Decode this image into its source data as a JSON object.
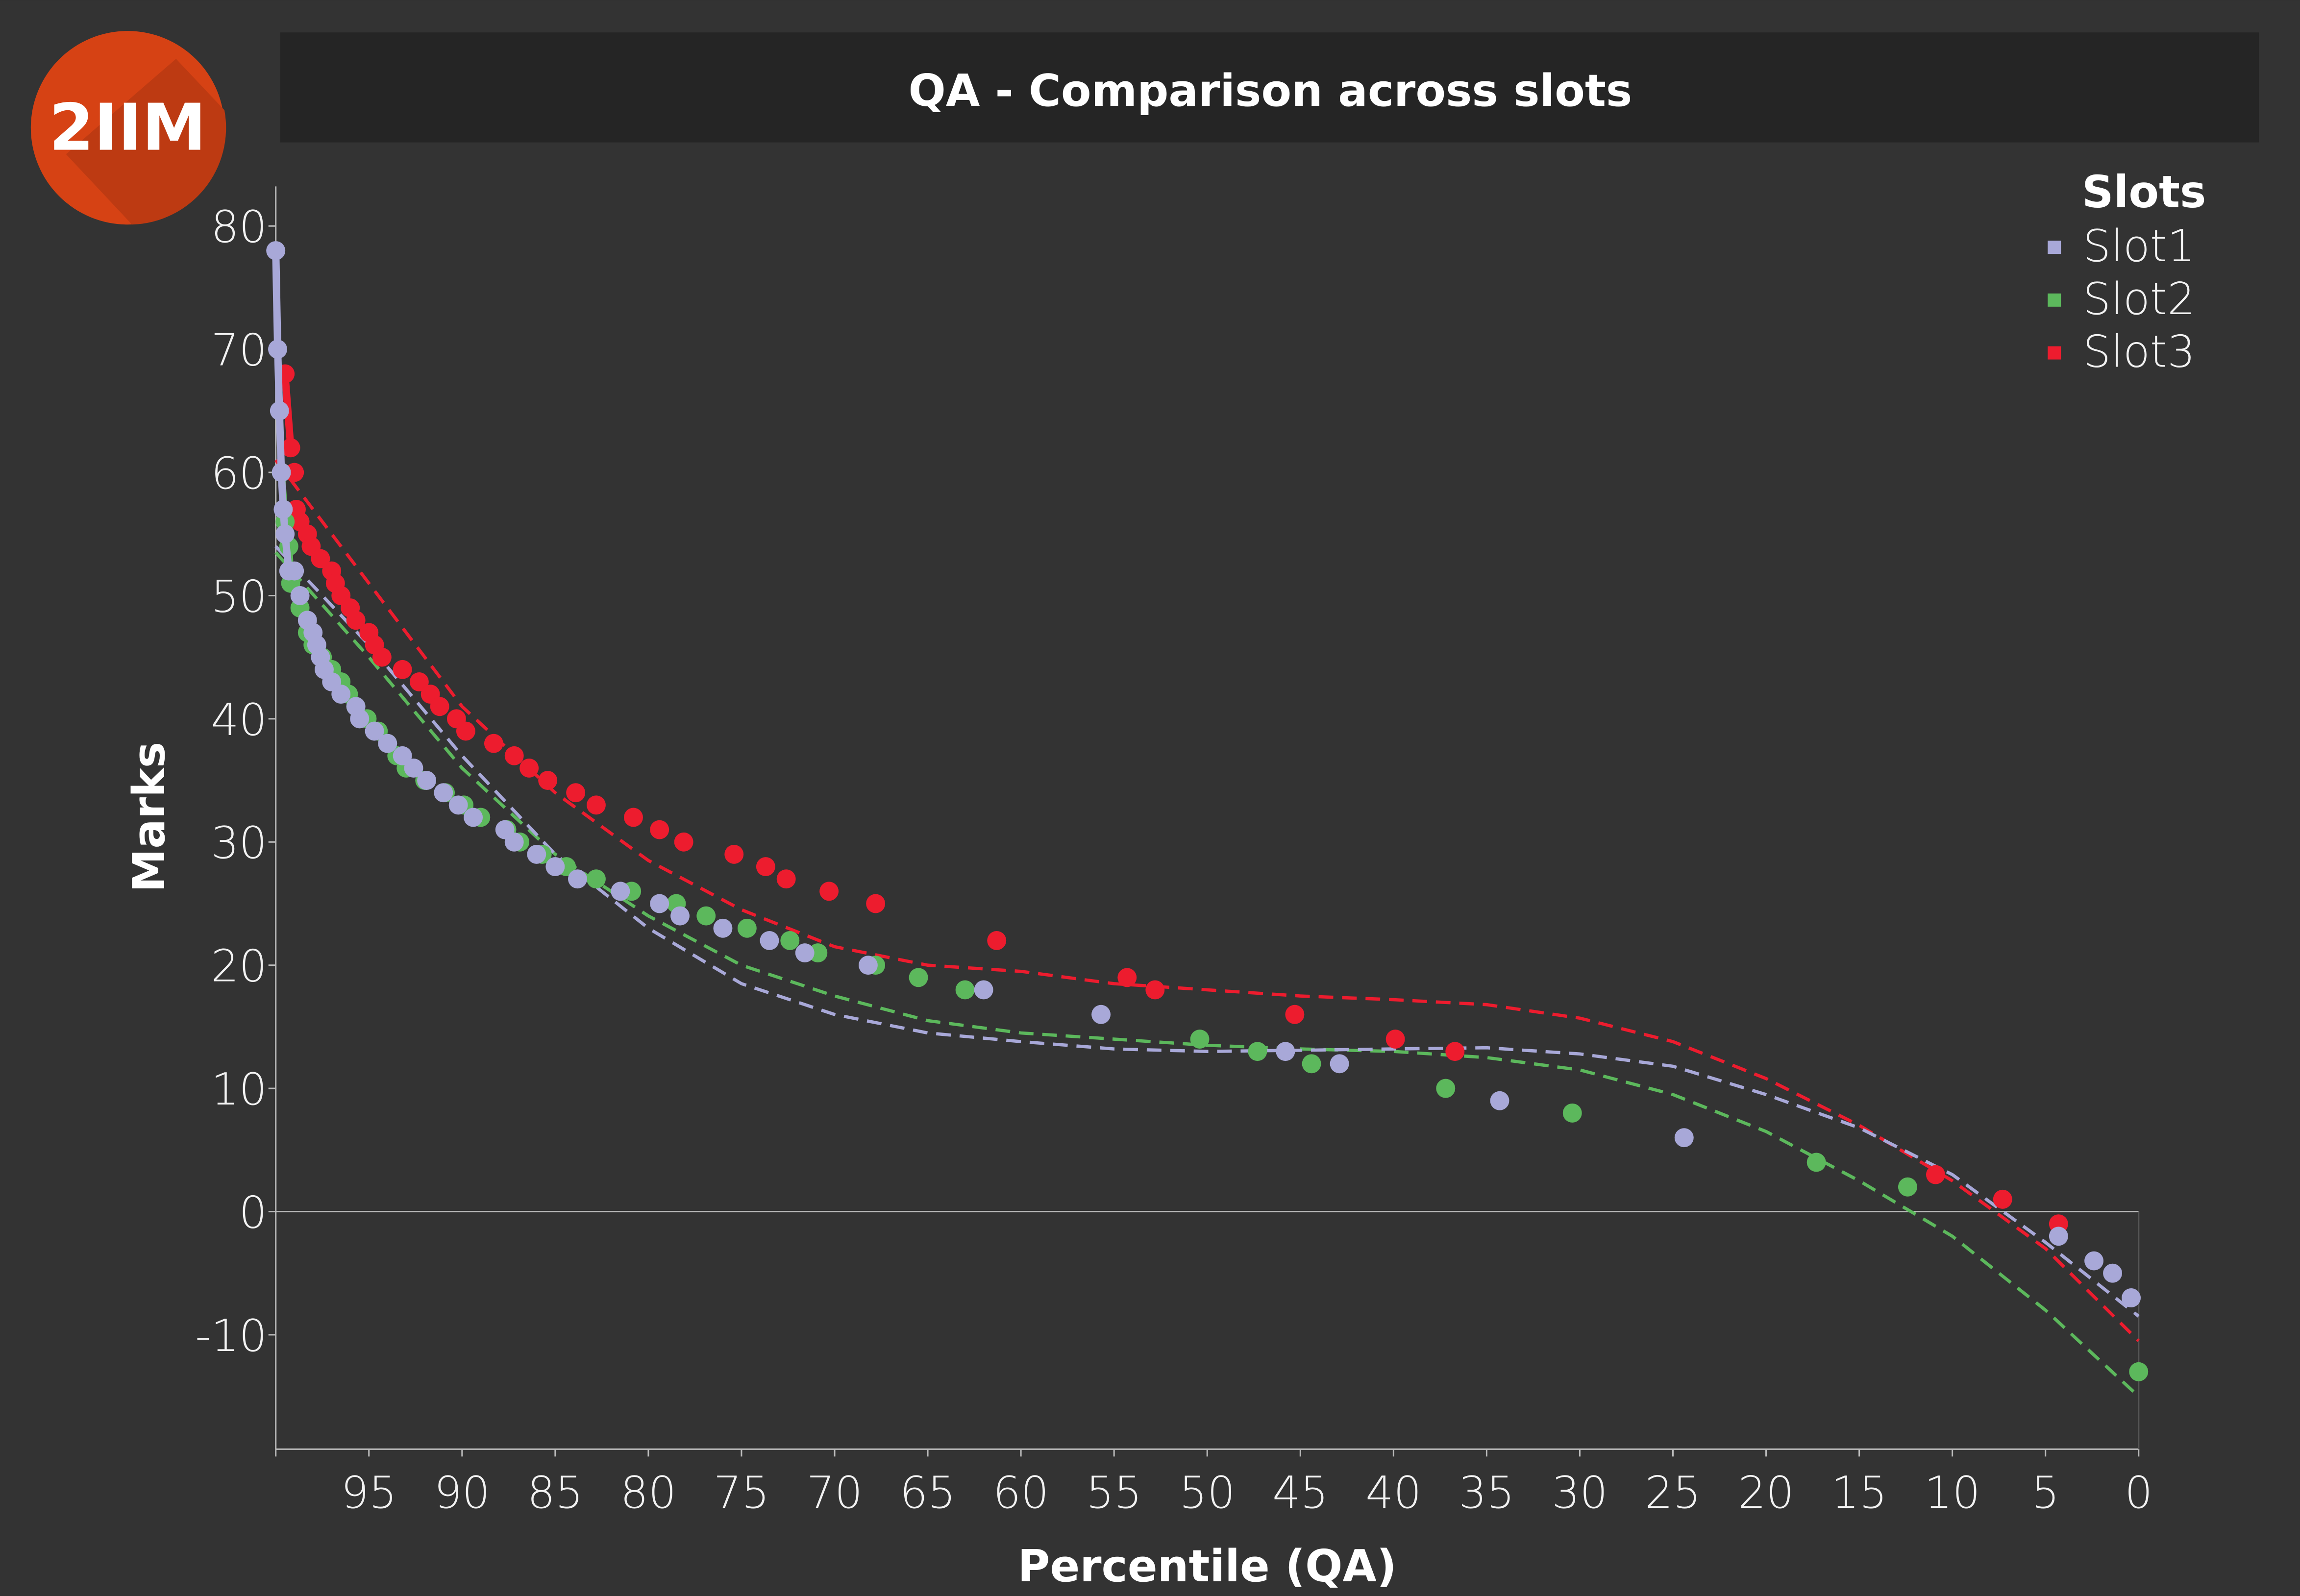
{
  "logo": {
    "text": "2IIM",
    "color": "#d64214"
  },
  "header": {
    "title": "QA - Comparison across slots"
  },
  "legend": {
    "title": "Slots",
    "items": [
      {
        "label": "Slot1",
        "color": "#a8a8d8"
      },
      {
        "label": "Slot2",
        "color": "#5cb85c"
      },
      {
        "label": "Slot3",
        "color": "#ed1c2e"
      }
    ]
  },
  "chart_data": {
    "type": "scatter",
    "title": "QA - Comparison across slots",
    "xlabel": "Percentile (QA)",
    "ylabel": "Marks",
    "xlim": [
      100,
      -0.3
    ],
    "ylim": [
      -19.3,
      83
    ],
    "x_reversed": true,
    "xticks": [
      95,
      90,
      85,
      80,
      75,
      70,
      65,
      60,
      55,
      50,
      45,
      40,
      35,
      30,
      25,
      20,
      15,
      10,
      5,
      0
    ],
    "yticks": [
      80,
      70,
      60,
      50,
      40,
      30,
      20,
      10,
      0,
      -10
    ],
    "zero_line": true,
    "legend_position": "top-right",
    "series": [
      {
        "name": "Slot1",
        "color": "#a8a8d8",
        "points": [
          [
            100,
            78
          ],
          [
            99.9,
            70
          ],
          [
            99.8,
            65
          ],
          [
            99.7,
            60
          ],
          [
            99.6,
            57
          ],
          [
            99.5,
            55
          ],
          [
            99.3,
            52
          ],
          [
            99,
            52
          ],
          [
            98.7,
            50
          ],
          [
            98.3,
            48
          ],
          [
            98,
            47
          ],
          [
            97.8,
            46
          ],
          [
            97.6,
            45
          ],
          [
            97.4,
            44
          ],
          [
            97,
            43
          ],
          [
            96.5,
            42
          ],
          [
            95.7,
            41
          ],
          [
            95.5,
            40
          ],
          [
            94.7,
            39
          ],
          [
            94,
            38
          ],
          [
            93.2,
            37
          ],
          [
            92.6,
            36
          ],
          [
            91.9,
            35
          ],
          [
            91,
            34
          ],
          [
            90.2,
            33
          ],
          [
            89.4,
            32
          ],
          [
            87.7,
            31
          ],
          [
            87.2,
            30
          ],
          [
            86,
            29
          ],
          [
            85,
            28
          ],
          [
            83.8,
            27
          ],
          [
            81.5,
            26
          ],
          [
            79.4,
            25
          ],
          [
            78.3,
            24
          ],
          [
            76,
            23
          ],
          [
            73.5,
            22
          ],
          [
            71.6,
            21
          ],
          [
            68.2,
            20
          ],
          [
            62,
            18
          ],
          [
            55.7,
            16
          ],
          [
            45.8,
            13
          ],
          [
            42.9,
            12
          ],
          [
            34.3,
            9
          ],
          [
            24.4,
            6
          ],
          [
            4.3,
            -2
          ],
          [
            2.4,
            -4
          ],
          [
            1.4,
            -5
          ],
          [
            0.4,
            -7
          ]
        ],
        "trend": [
          [
            100,
            54
          ],
          [
            95,
            46
          ],
          [
            90,
            37
          ],
          [
            85,
            29
          ],
          [
            80,
            23
          ],
          [
            75,
            18.5
          ],
          [
            70,
            16
          ],
          [
            65,
            14.5
          ],
          [
            60,
            13.8
          ],
          [
            55,
            13.2
          ],
          [
            50,
            13
          ],
          [
            45,
            13.1
          ],
          [
            40,
            13.2
          ],
          [
            35,
            13.3
          ],
          [
            30,
            12.8
          ],
          [
            25,
            11.8
          ],
          [
            20,
            9.5
          ],
          [
            15,
            6.8
          ],
          [
            10,
            3
          ],
          [
            5,
            -2.5
          ],
          [
            0,
            -8.5
          ]
        ]
      },
      {
        "name": "Slot2",
        "color": "#5cb85c",
        "points": [
          [
            99.7,
            60
          ],
          [
            99.5,
            56
          ],
          [
            99.3,
            54
          ],
          [
            99.2,
            51
          ],
          [
            98.7,
            49
          ],
          [
            98.3,
            47
          ],
          [
            98,
            46
          ],
          [
            97.5,
            45
          ],
          [
            97,
            44
          ],
          [
            96.5,
            43
          ],
          [
            96.1,
            42
          ],
          [
            95.7,
            41
          ],
          [
            95.1,
            40
          ],
          [
            94.5,
            39
          ],
          [
            94,
            38
          ],
          [
            93.5,
            37
          ],
          [
            93,
            36
          ],
          [
            92,
            35
          ],
          [
            90.9,
            34
          ],
          [
            89.9,
            33
          ],
          [
            89,
            32
          ],
          [
            87.6,
            31
          ],
          [
            86.9,
            30
          ],
          [
            85.7,
            29
          ],
          [
            84.4,
            28
          ],
          [
            82.8,
            27
          ],
          [
            80.9,
            26
          ],
          [
            78.5,
            25
          ],
          [
            76.9,
            24
          ],
          [
            74.7,
            23
          ],
          [
            72.4,
            22
          ],
          [
            70.9,
            21
          ],
          [
            67.8,
            20
          ],
          [
            65.5,
            19
          ],
          [
            63,
            18
          ],
          [
            50.4,
            14
          ],
          [
            47.3,
            13
          ],
          [
            44.4,
            12
          ],
          [
            37.2,
            10
          ],
          [
            30.4,
            8
          ],
          [
            17.3,
            4
          ],
          [
            12.4,
            2
          ],
          [
            0,
            -13
          ]
        ],
        "trend": [
          [
            100,
            53.5
          ],
          [
            95,
            45
          ],
          [
            90,
            36
          ],
          [
            85,
            29
          ],
          [
            80,
            24
          ],
          [
            75,
            20
          ],
          [
            70,
            17.5
          ],
          [
            65,
            15.5
          ],
          [
            60,
            14.5
          ],
          [
            55,
            14
          ],
          [
            50,
            13.5
          ],
          [
            45,
            13.2
          ],
          [
            40,
            13
          ],
          [
            35,
            12.5
          ],
          [
            30,
            11.5
          ],
          [
            25,
            9.5
          ],
          [
            20,
            6.5
          ],
          [
            15,
            2.5
          ],
          [
            10,
            -2
          ],
          [
            5,
            -8
          ],
          [
            0,
            -15
          ]
        ]
      },
      {
        "name": "Slot3",
        "color": "#ed1c2e",
        "points": [
          [
            99.5,
            68
          ],
          [
            99.2,
            62
          ],
          [
            99,
            60
          ],
          [
            98.9,
            57
          ],
          [
            98.7,
            56
          ],
          [
            98.3,
            55
          ],
          [
            98.1,
            54
          ],
          [
            97.6,
            53
          ],
          [
            97,
            52
          ],
          [
            96.8,
            51
          ],
          [
            96.5,
            50
          ],
          [
            96,
            49
          ],
          [
            95.7,
            48
          ],
          [
            95,
            47
          ],
          [
            94.7,
            46
          ],
          [
            94.3,
            45
          ],
          [
            93.2,
            44
          ],
          [
            92.3,
            43
          ],
          [
            91.7,
            42
          ],
          [
            91.2,
            41
          ],
          [
            90.3,
            40
          ],
          [
            89.8,
            39
          ],
          [
            88.3,
            38
          ],
          [
            87.2,
            37
          ],
          [
            86.4,
            36
          ],
          [
            85.4,
            35
          ],
          [
            83.9,
            34
          ],
          [
            82.8,
            33
          ],
          [
            80.8,
            32
          ],
          [
            79.4,
            31
          ],
          [
            78.1,
            30
          ],
          [
            75.4,
            29
          ],
          [
            73.7,
            28
          ],
          [
            72.6,
            27
          ],
          [
            70.3,
            26
          ],
          [
            67.8,
            25
          ],
          [
            61.3,
            22
          ],
          [
            54.3,
            19
          ],
          [
            52.8,
            18
          ],
          [
            45.3,
            16
          ],
          [
            39.9,
            14
          ],
          [
            36.7,
            13
          ],
          [
            10.9,
            3
          ],
          [
            7.3,
            1
          ],
          [
            4.3,
            -1
          ]
        ],
        "trend": [
          [
            100,
            61
          ],
          [
            95,
            51
          ],
          [
            90,
            41
          ],
          [
            85,
            34
          ],
          [
            80,
            28.5
          ],
          [
            75,
            24.5
          ],
          [
            70,
            21.5
          ],
          [
            65,
            20
          ],
          [
            60,
            19.5
          ],
          [
            55,
            18.5
          ],
          [
            50,
            18
          ],
          [
            45,
            17.5
          ],
          [
            40,
            17.2
          ],
          [
            35,
            16.8
          ],
          [
            30,
            15.7
          ],
          [
            25,
            13.8
          ],
          [
            20,
            10.8
          ],
          [
            15,
            7
          ],
          [
            10,
            2.5
          ],
          [
            5,
            -3
          ],
          [
            0,
            -10.5
          ]
        ]
      }
    ]
  }
}
